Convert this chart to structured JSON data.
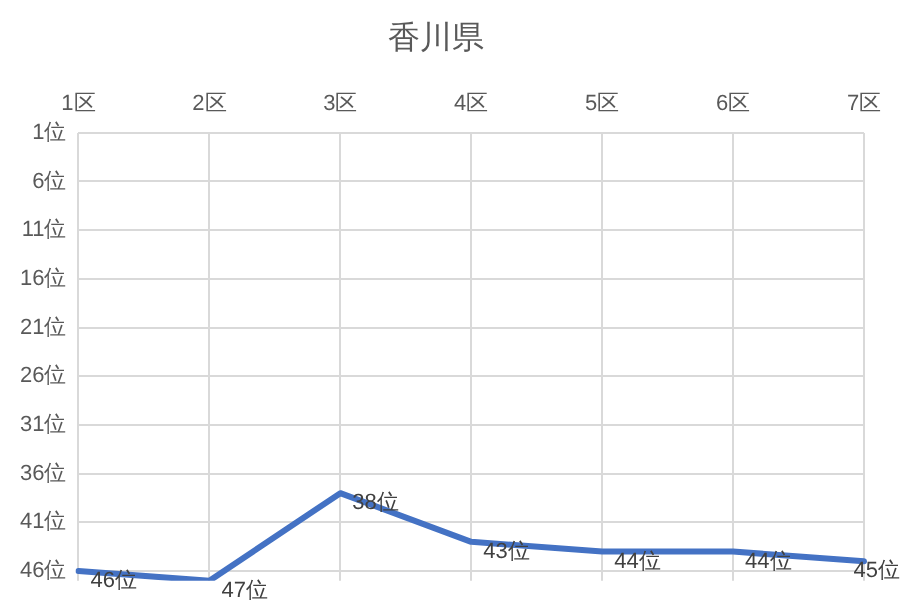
{
  "chart_data": {
    "type": "line",
    "title": "香川県",
    "categories": [
      "1区",
      "2区",
      "3区",
      "4区",
      "5区",
      "6区",
      "7区"
    ],
    "series": [
      {
        "color": "#4472c4",
        "values": [
          46,
          47,
          38,
          43,
          44,
          44,
          45
        ],
        "value_labels": [
          "46位",
          "47位",
          "38位",
          "43位",
          "44位",
          "44位",
          "45位"
        ]
      }
    ],
    "ylim": [
      47,
      1
    ],
    "yticks": [
      {
        "value": 1,
        "label": "1位"
      },
      {
        "value": 6,
        "label": "6位"
      },
      {
        "value": 11,
        "label": "11位"
      },
      {
        "value": 16,
        "label": "16位"
      },
      {
        "value": 21,
        "label": "21位"
      },
      {
        "value": 26,
        "label": "26位"
      },
      {
        "value": 31,
        "label": "31位"
      },
      {
        "value": 36,
        "label": "36位"
      },
      {
        "value": 41,
        "label": "41位"
      },
      {
        "value": 46,
        "label": "46位"
      }
    ],
    "grid": true,
    "legend": false,
    "marker": "none",
    "line_style": "solid"
  }
}
